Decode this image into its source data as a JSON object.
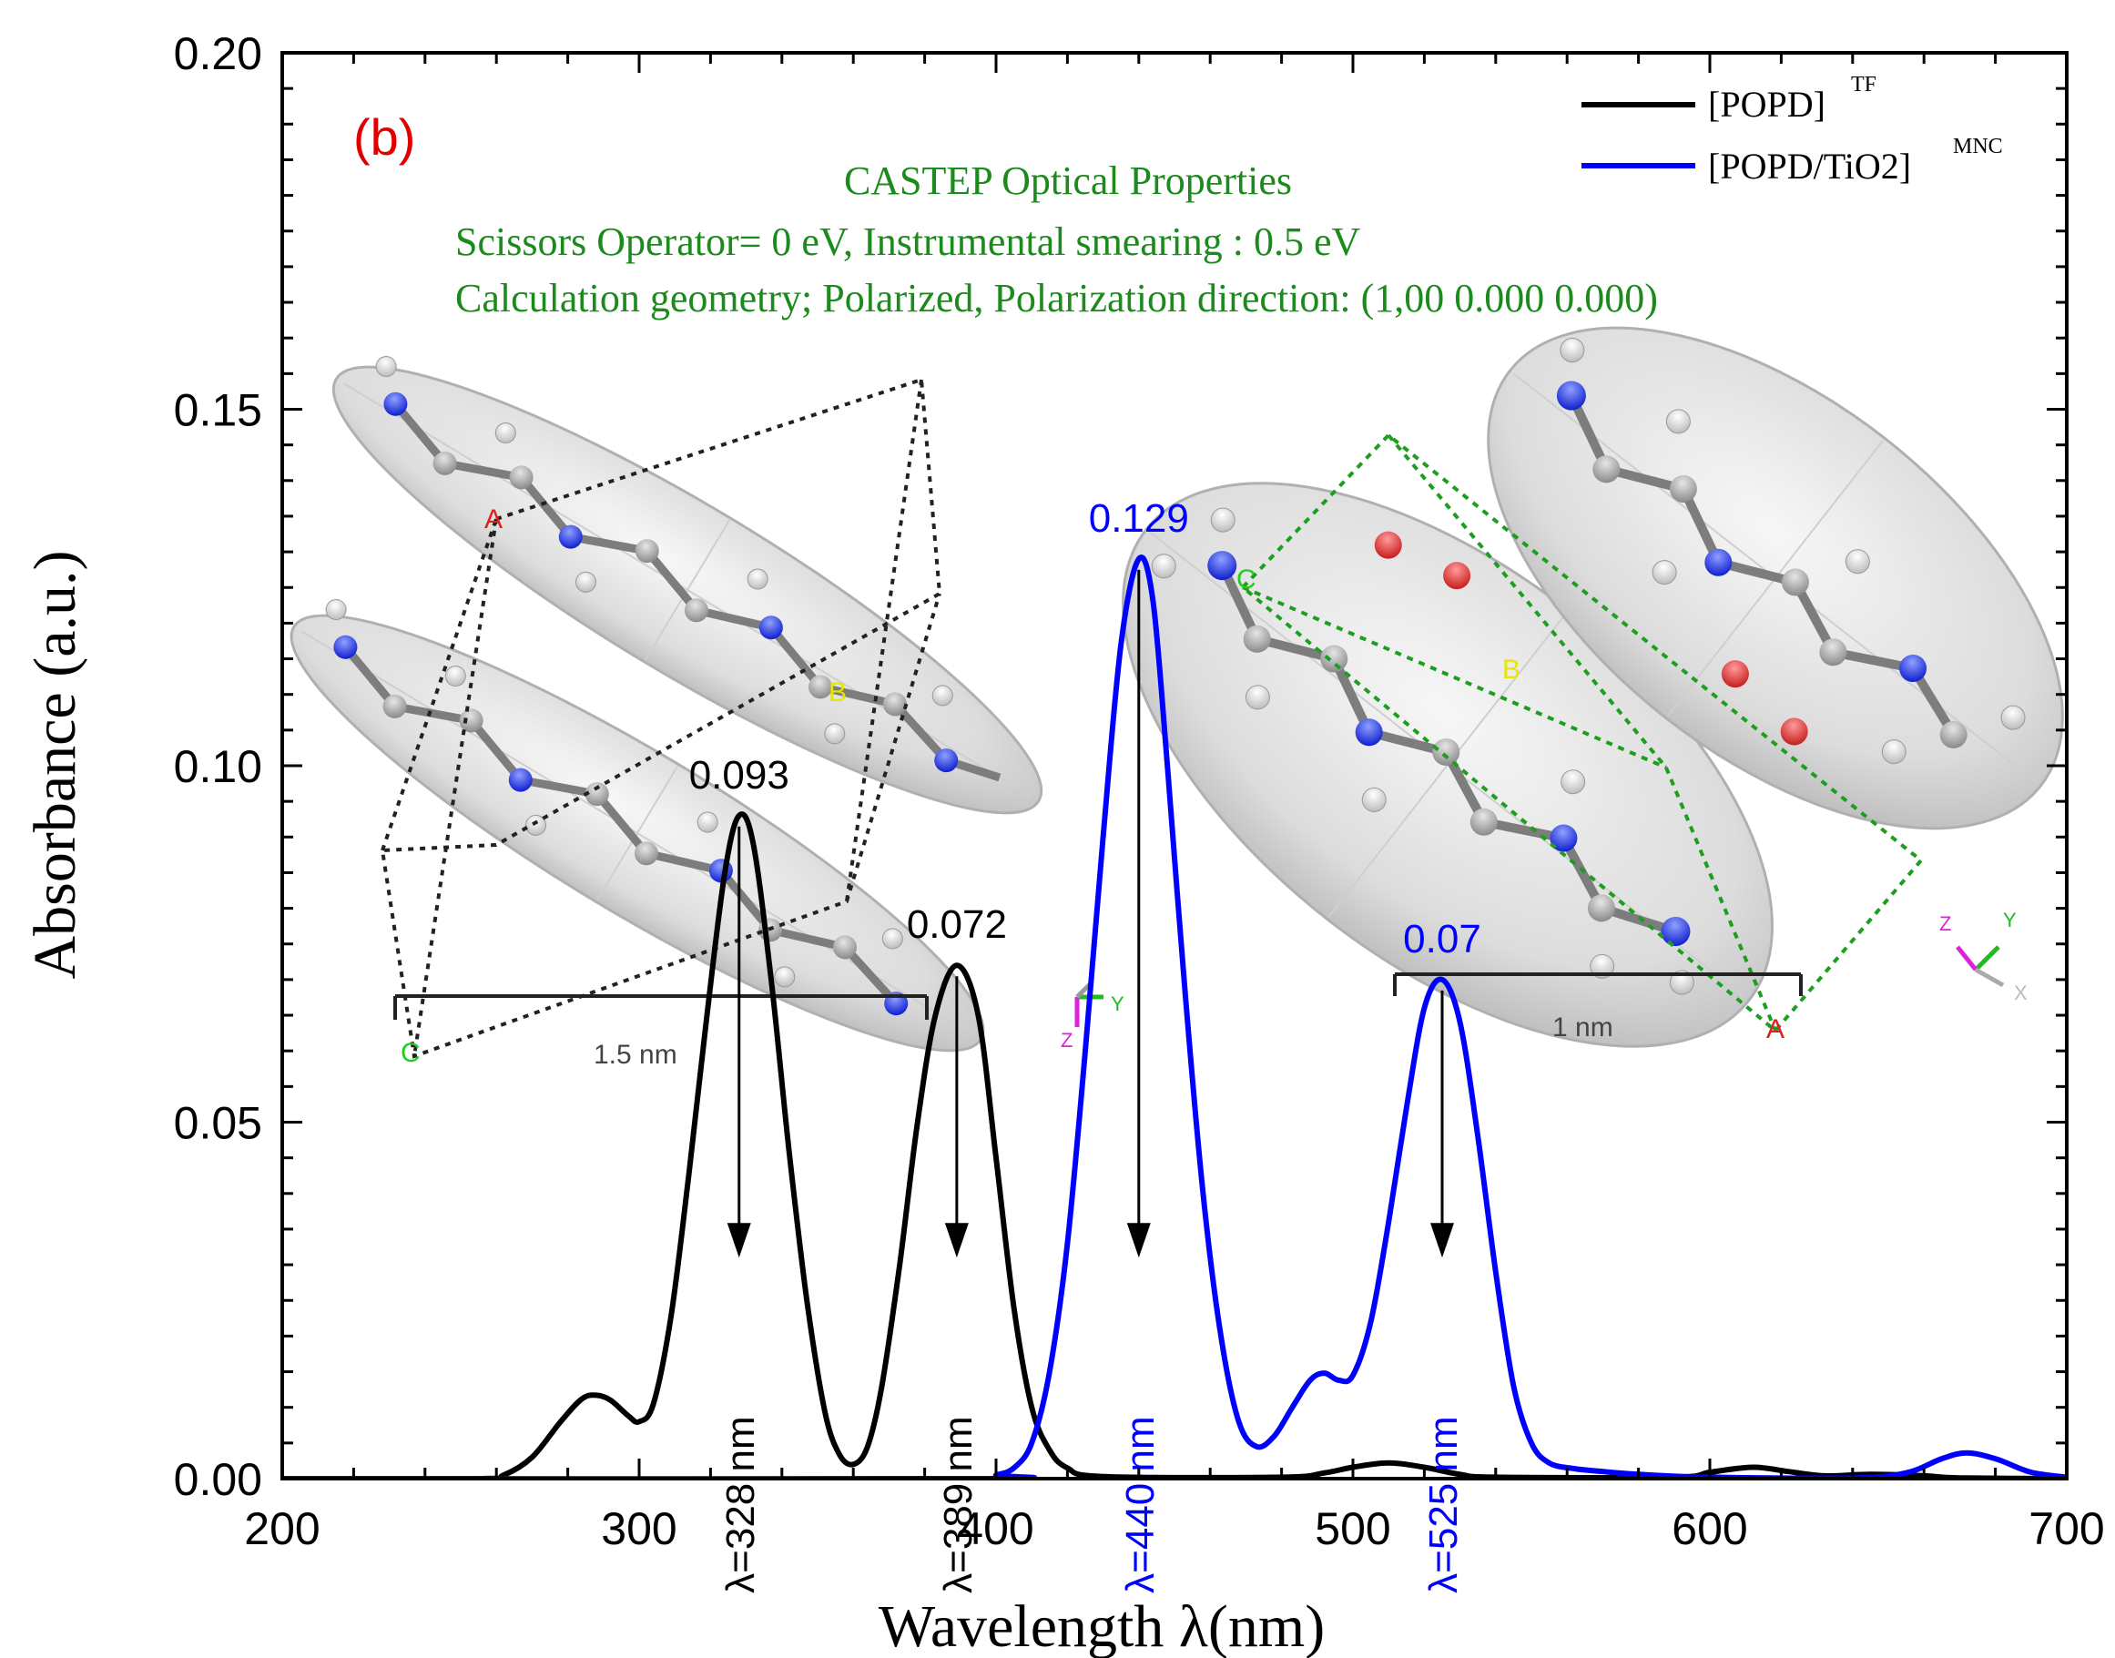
{
  "chart_data": {
    "type": "line",
    "panel_label": "(b)",
    "xlabel": "Wavelength λ(nm)",
    "ylabel": "Absorbance (a.u.)",
    "xlim": [
      200,
      700
    ],
    "ylim": [
      0,
      0.2
    ],
    "x_ticks": [
      "200",
      "300",
      "400",
      "500",
      "600",
      "700"
    ],
    "y_ticks": [
      "0.00",
      "0.05",
      "0.10",
      "0.15",
      "0.20"
    ],
    "grid": false,
    "legend_position": "top-right",
    "info_lines": [
      "CASTEP Optical Properties",
      "Scissors Operator= 0 eV, Instrumental smearing : 0.5 eV",
      "Calculation geometry; Polarized, Polarization direction: (1,00 0.000 0.000)"
    ],
    "series": [
      {
        "name": "[POPD]",
        "name_sup": "TF",
        "color": "#000000",
        "points": [
          [
            200,
            0
          ],
          [
            255,
            0
          ],
          [
            262,
            0.0005
          ],
          [
            270,
            0.003
          ],
          [
            278,
            0.008
          ],
          [
            284,
            0.0112
          ],
          [
            288,
            0.0117
          ],
          [
            292,
            0.011
          ],
          [
            297,
            0.0088
          ],
          [
            300,
            0.008
          ],
          [
            304,
            0.0105
          ],
          [
            309,
            0.023
          ],
          [
            314,
            0.043
          ],
          [
            319,
            0.065
          ],
          [
            324,
            0.085
          ],
          [
            328,
            0.093
          ],
          [
            332,
            0.089
          ],
          [
            337,
            0.07
          ],
          [
            342,
            0.046
          ],
          [
            347,
            0.025
          ],
          [
            352,
            0.0095
          ],
          [
            356,
            0.0035
          ],
          [
            360,
            0.002
          ],
          [
            364,
            0.0045
          ],
          [
            368,
            0.013
          ],
          [
            373,
            0.03
          ],
          [
            378,
            0.05
          ],
          [
            383,
            0.065
          ],
          [
            389,
            0.072
          ],
          [
            395,
            0.065
          ],
          [
            400,
            0.045
          ],
          [
            405,
            0.024
          ],
          [
            410,
            0.01
          ],
          [
            415,
            0.004
          ],
          [
            420,
            0.0015
          ],
          [
            430,
            0.0003
          ],
          [
            480,
            0.0002
          ],
          [
            492,
            0.0008
          ],
          [
            500,
            0.0016
          ],
          [
            510,
            0.0022
          ],
          [
            520,
            0.0016
          ],
          [
            530,
            0.0006
          ],
          [
            540,
            0.0002
          ],
          [
            590,
            0.0002
          ],
          [
            600,
            0.0009
          ],
          [
            612,
            0.0016
          ],
          [
            622,
            0.001
          ],
          [
            632,
            0.0004
          ],
          [
            645,
            0.0006
          ],
          [
            660,
            0.0004
          ],
          [
            670,
            0.0001
          ],
          [
            700,
            0
          ]
        ]
      },
      {
        "name": "[POPD/TiO2]",
        "name_sup": "MNC",
        "color": "#0000ff",
        "points": [
          [
            200,
            0
          ],
          [
            395,
            0
          ],
          [
            400,
            0.0005
          ],
          [
            405,
            0.0015
          ],
          [
            410,
            0.005
          ],
          [
            415,
            0.015
          ],
          [
            420,
            0.033
          ],
          [
            425,
            0.06
          ],
          [
            430,
            0.09
          ],
          [
            435,
            0.117
          ],
          [
            440,
            0.129
          ],
          [
            444,
            0.123
          ],
          [
            448,
            0.1
          ],
          [
            453,
            0.068
          ],
          [
            458,
            0.04
          ],
          [
            463,
            0.02
          ],
          [
            468,
            0.008
          ],
          [
            473,
            0.0045
          ],
          [
            478,
            0.006
          ],
          [
            483,
            0.01
          ],
          [
            488,
            0.0138
          ],
          [
            492,
            0.0148
          ],
          [
            496,
            0.0138
          ],
          [
            500,
            0.0145
          ],
          [
            505,
            0.022
          ],
          [
            510,
            0.036
          ],
          [
            515,
            0.052
          ],
          [
            520,
            0.066
          ],
          [
            525,
            0.07
          ],
          [
            530,
            0.064
          ],
          [
            535,
            0.048
          ],
          [
            540,
            0.029
          ],
          [
            545,
            0.013
          ],
          [
            550,
            0.005
          ],
          [
            555,
            0.0022
          ],
          [
            562,
            0.0014
          ],
          [
            570,
            0.001
          ],
          [
            580,
            0.0006
          ],
          [
            600,
            0.0002
          ],
          [
            640,
            0.0001
          ],
          [
            655,
            0.0008
          ],
          [
            665,
            0.0028
          ],
          [
            672,
            0.0036
          ],
          [
            680,
            0.0028
          ],
          [
            690,
            0.0009
          ],
          [
            700,
            0.0002
          ]
        ]
      }
    ],
    "peaks": [
      {
        "value_label": "0.093",
        "lambda_label": "λ=328 nm",
        "x": 328,
        "y": 0.093,
        "series": 0
      },
      {
        "value_label": "0.072",
        "lambda_label": "λ=389 nm",
        "x": 389,
        "y": 0.072,
        "series": 0
      },
      {
        "value_label": "0.129",
        "lambda_label": "λ=440 nm",
        "x": 440,
        "y": 0.129,
        "series": 1
      },
      {
        "value_label": "0.07",
        "lambda_label": "λ=525 nm",
        "x": 525,
        "y": 0.07,
        "series": 1
      }
    ]
  },
  "insets": {
    "left_scale_label": "1.5 nm",
    "right_scale_label": "1 nm",
    "lattice_letters": [
      "A",
      "B",
      "C"
    ],
    "axis_letters": [
      "X",
      "Y",
      "Z"
    ],
    "colors": {
      "left_lattice": "#222222",
      "right_lattice": "#1e9e1e",
      "carbon": "#9a9a9a",
      "nitrogen": "#2a3cff",
      "oxygen": "#e03030",
      "hydrogen": "#f2f2f2"
    }
  }
}
